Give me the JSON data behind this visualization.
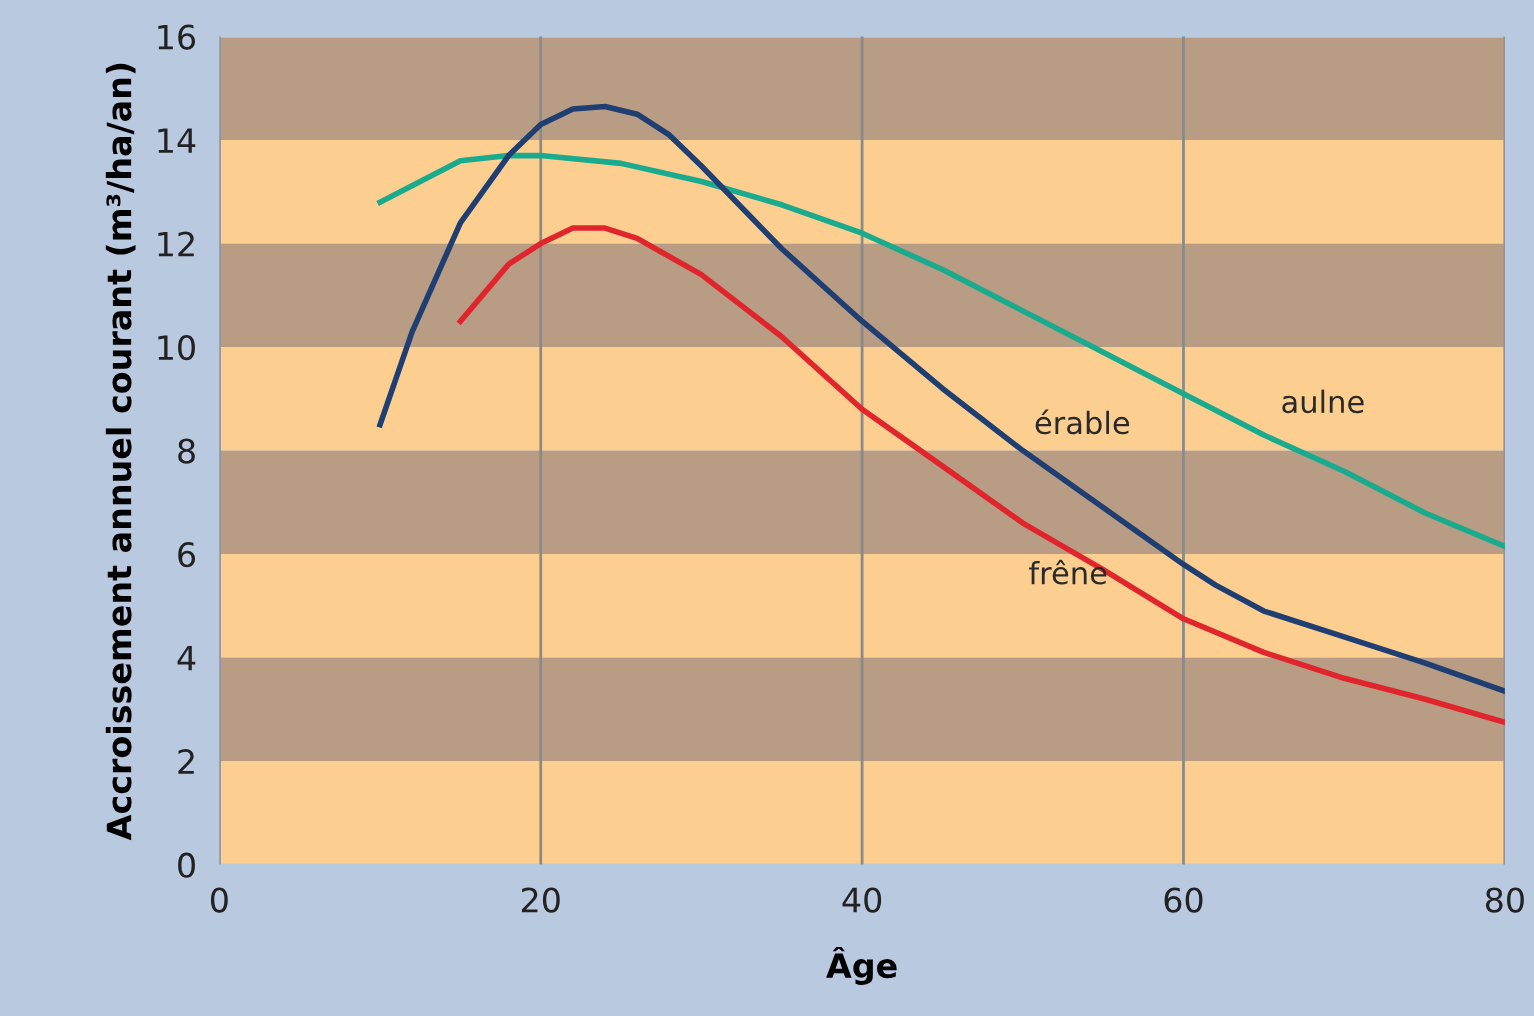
{
  "chart_data": {
    "type": "line",
    "xlabel": "Âge",
    "ylabel": "Accroissement annuel courant (m³/ha/an)",
    "xlim": [
      0,
      80
    ],
    "ylim": [
      0,
      16
    ],
    "xticks": [
      0,
      20,
      40,
      60,
      80
    ],
    "yticks": [
      0,
      2,
      4,
      6,
      8,
      10,
      12,
      14,
      16
    ],
    "grid": "x",
    "legend": false,
    "marker": "none",
    "line_style": "solid",
    "bands": [
      {
        "axis": "y",
        "from": 0,
        "to": 2,
        "color": "#fccf90"
      },
      {
        "axis": "y",
        "from": 2,
        "to": 4,
        "color": "#b89c84"
      },
      {
        "axis": "y",
        "from": 4,
        "to": 6,
        "color": "#fccf90"
      },
      {
        "axis": "y",
        "from": 6,
        "to": 8,
        "color": "#b89c84"
      },
      {
        "axis": "y",
        "from": 8,
        "to": 10,
        "color": "#fccf90"
      },
      {
        "axis": "y",
        "from": 10,
        "to": 12,
        "color": "#b89c84"
      },
      {
        "axis": "y",
        "from": 12,
        "to": 14,
        "color": "#fccf90"
      },
      {
        "axis": "y",
        "from": 14,
        "to": 16,
        "color": "#b89c84"
      }
    ],
    "series": [
      {
        "name": "aulne",
        "color": "#1aab8e",
        "x": [
          10,
          15,
          18,
          20,
          25,
          30,
          35,
          40,
          45,
          50,
          55,
          60,
          65,
          70,
          75,
          80
        ],
        "values": [
          12.8,
          13.6,
          13.7,
          13.7,
          13.55,
          13.2,
          12.75,
          12.2,
          11.5,
          10.7,
          9.9,
          9.1,
          8.3,
          7.6,
          6.8,
          6.15
        ]
      },
      {
        "name": "érable",
        "color": "#1f3f73",
        "x": [
          10,
          12,
          15,
          18,
          20,
          22,
          24,
          26,
          28,
          30,
          35,
          40,
          45,
          50,
          55,
          60,
          62,
          65,
          70,
          75,
          80
        ],
        "values": [
          8.5,
          10.3,
          12.4,
          13.7,
          14.3,
          14.6,
          14.65,
          14.5,
          14.1,
          13.5,
          11.9,
          10.5,
          9.2,
          8.0,
          6.9,
          5.8,
          5.4,
          4.9,
          4.4,
          3.9,
          3.35
        ]
      },
      {
        "name": "frêne",
        "color": "#e0262c",
        "x": [
          15,
          18,
          20,
          22,
          24,
          26,
          30,
          35,
          40,
          45,
          50,
          55,
          60,
          65,
          70,
          75,
          80
        ],
        "values": [
          10.5,
          11.6,
          12.0,
          12.3,
          12.3,
          12.1,
          11.4,
          10.2,
          8.8,
          7.7,
          6.6,
          5.7,
          4.75,
          4.1,
          3.6,
          3.2,
          2.75
        ]
      }
    ]
  }
}
